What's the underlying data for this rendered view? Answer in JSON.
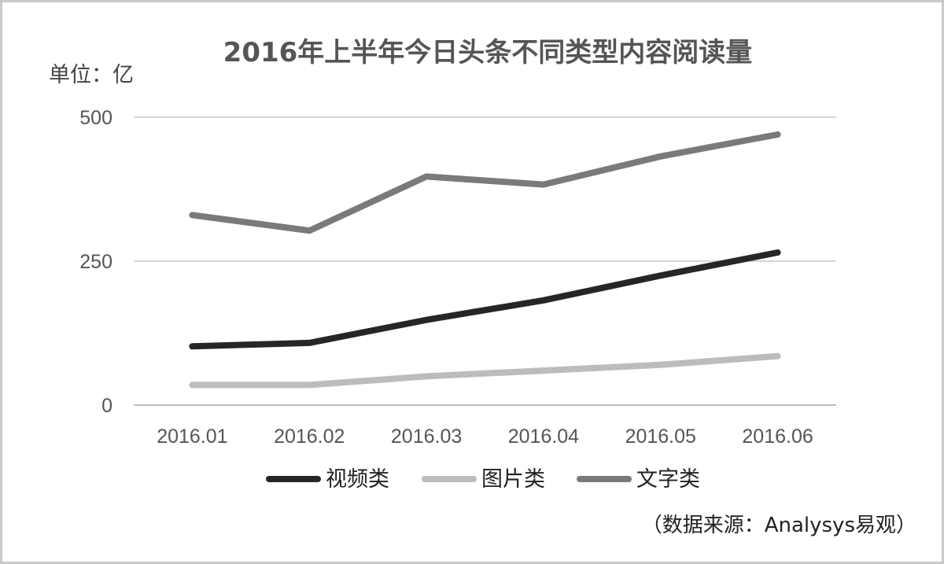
{
  "chart_data": {
    "type": "line",
    "title": "2016年上半年今日头条不同类型内容阅读量",
    "unit_label": "单位：亿",
    "categories": [
      "2016.01",
      "2016.02",
      "2016.03",
      "2016.04",
      "2016.05",
      "2016.06"
    ],
    "ylim": [
      0,
      500
    ],
    "yticks": [
      0,
      250,
      500
    ],
    "grid": true,
    "legend_position": "bottom",
    "series": [
      {
        "name": "视频类",
        "color": "#262626",
        "values": [
          102,
          108,
          148,
          182,
          225,
          265
        ]
      },
      {
        "name": "图片类",
        "color": "#bcbcbc",
        "values": [
          35,
          35,
          50,
          60,
          70,
          85
        ]
      },
      {
        "name": "文字类",
        "color": "#7a7a7a",
        "values": [
          330,
          303,
          397,
          383,
          432,
          470
        ]
      }
    ],
    "source": "（数据来源：Analysys易观）"
  }
}
